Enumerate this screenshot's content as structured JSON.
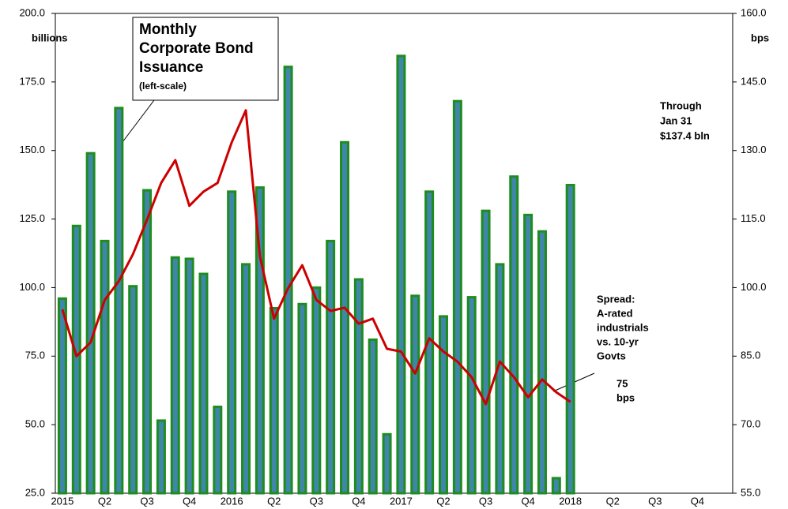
{
  "chart_data": {
    "type": "bar_line",
    "categories": [
      "2015",
      null,
      null,
      "Q2",
      null,
      null,
      "Q3",
      null,
      null,
      "Q4",
      null,
      null,
      "2016",
      null,
      null,
      "Q2",
      null,
      null,
      "Q3",
      null,
      null,
      "Q4",
      null,
      null,
      "2017",
      null,
      null,
      "Q2",
      null,
      null,
      "Q3",
      null,
      null,
      "Q4",
      null,
      null,
      "2018",
      null,
      null,
      "Q2",
      null,
      null,
      "Q3",
      null,
      null,
      "Q4",
      null,
      null
    ],
    "series": [
      {
        "type": "bar",
        "color": "#1e8c1e",
        "fill": "#3f86a8",
        "values": [
          96,
          122.5,
          149,
          117,
          165.5,
          100.5,
          135.5,
          51.5,
          111,
          110.5,
          105,
          56.5,
          135,
          108.5,
          136.5,
          92.5,
          180.5,
          94,
          100,
          117,
          153,
          103,
          81,
          46.5,
          184.5,
          97,
          135,
          89.5,
          168,
          96.5,
          128,
          108.5,
          140.5,
          126.5,
          120.5,
          30.5,
          137.4,
          null,
          null,
          null,
          null,
          null,
          null,
          null,
          null,
          null,
          null,
          null
        ]
      },
      {
        "type": "line",
        "color": "#cc0000",
        "axis": "y2",
        "values": [
          95.2,
          85,
          88,
          97.3,
          101.4,
          107.3,
          114.9,
          122.9,
          127.9,
          117.9,
          121,
          122.9,
          131.8,
          138.8,
          106.8,
          93.2,
          99.9,
          104.9,
          97.3,
          94.9,
          95.6,
          92.1,
          93.2,
          86.6,
          86,
          81.2,
          88.9,
          86,
          83.8,
          80.4,
          74.5,
          83.8,
          80.4,
          76,
          79.9,
          77.1,
          75,
          null,
          null,
          null,
          null,
          null,
          null,
          null,
          null,
          null,
          null,
          null
        ]
      }
    ],
    "ylim": [
      25,
      200
    ],
    "yticks": [
      {
        "value": 25,
        "label": "25.0"
      },
      {
        "value": 50,
        "label": "50.0"
      },
      {
        "value": 75,
        "label": "75.0"
      },
      {
        "value": 100,
        "label": "100.0"
      },
      {
        "value": 125,
        "label": "125.0"
      },
      {
        "value": 150,
        "label": "150.0"
      },
      {
        "value": 175,
        "label": "175.0"
      },
      {
        "value": 200,
        "label": "200.0"
      }
    ],
    "y2lim": [
      55,
      160
    ],
    "y2ticks": [
      {
        "value": 55,
        "label": "55.0"
      },
      {
        "value": 70,
        "label": "70.0"
      },
      {
        "value": 85,
        "label": "85.0"
      },
      {
        "value": 100,
        "label": "100.0"
      },
      {
        "value": 115,
        "label": "115.0"
      },
      {
        "value": 130,
        "label": "130.0"
      },
      {
        "value": 145,
        "label": "145.0"
      },
      {
        "value": 160,
        "label": "160.0"
      }
    ],
    "ylabel": "billions",
    "y2label": "bps",
    "title": [
      "Monthly",
      "Corporate Bond",
      "Issuance"
    ],
    "title_note": "(left-scale)",
    "annotations": [
      [
        "Through",
        "Jan 31",
        "$137.4 bln"
      ],
      [
        "Spread:",
        "A-rated",
        "industrials",
        "vs. 10-yr",
        "Govts"
      ],
      [
        "75",
        "bps"
      ]
    ]
  }
}
